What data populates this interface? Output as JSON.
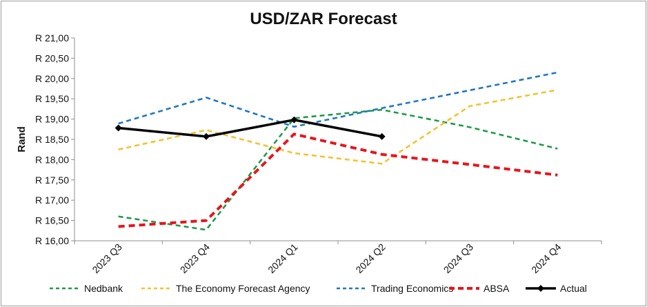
{
  "chart_data": {
    "type": "line",
    "title": "USD/ZAR Forecast",
    "xlabel": "",
    "ylabel": "Rand",
    "ylim": [
      16.0,
      21.0
    ],
    "ytick_step": 0.5,
    "ytick_prefix": "R ",
    "decimal_separator": ",",
    "grid": false,
    "legend_position": "bottom",
    "categories": [
      "2023 Q3",
      "2023 Q4",
      "2024 Q1",
      "2024 Q2",
      "2024 Q3",
      "2024 Q4"
    ],
    "series": [
      {
        "name": "Nedbank",
        "color": "#1e9a48",
        "style": "dashed",
        "values": [
          16.6,
          16.27,
          19.02,
          19.23,
          18.8,
          18.27
        ]
      },
      {
        "name": "The Economy Forecast Agency",
        "color": "#f5c12d",
        "style": "dashed",
        "values": [
          18.25,
          18.73,
          18.16,
          17.9,
          19.32,
          19.72
        ]
      },
      {
        "name": "Trading Economics",
        "color": "#1f77c0",
        "style": "dashed",
        "values": [
          18.89,
          19.53,
          18.81,
          19.27,
          19.71,
          20.15
        ]
      },
      {
        "name": "ABSA",
        "color": "#e8141b",
        "style": "dashed-thick",
        "values": [
          16.35,
          16.5,
          18.63,
          18.13,
          17.88,
          17.62
        ]
      },
      {
        "name": "Actual",
        "color": "#000000",
        "style": "solid-diamond",
        "values": [
          18.78,
          18.57,
          18.98,
          18.57,
          null,
          null
        ]
      }
    ]
  }
}
